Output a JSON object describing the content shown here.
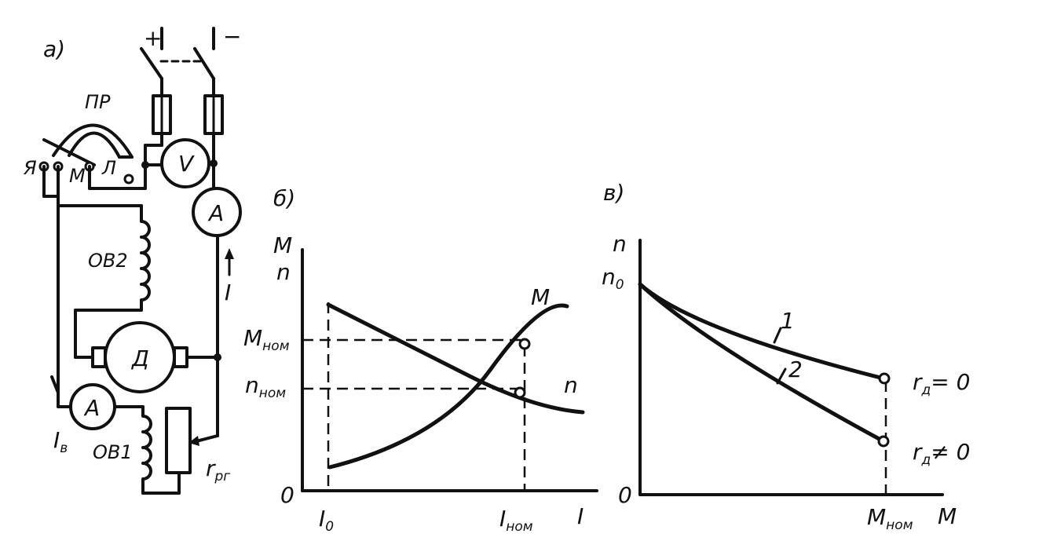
{
  "panel_a": {
    "label": "а)",
    "plus": "+",
    "minus": "−",
    "rheostat": "ПР",
    "tap_ya": "Я",
    "tap_m": "М",
    "tap_l": "Л",
    "voltmeter": "V",
    "ammeter_main": "A",
    "current": "I",
    "field_series": "ОВ2",
    "motor": "Д",
    "ammeter_field": "A",
    "field_current": "I",
    "field_current_sub": "в",
    "field_shunt": "ОВ1",
    "field_reg": "r",
    "field_reg_sub": "рг"
  },
  "panel_b": {
    "label": "б)",
    "ylabel_top": "M",
    "ylabel_bottom": "n",
    "origin": "0",
    "m_nom": "M",
    "m_nom_sub": "ном",
    "n_nom": "n",
    "n_nom_sub": "ном",
    "curve_m": "M",
    "curve_n": "n",
    "x_i0": "I",
    "x_i0_sub": "0",
    "x_inom": "I",
    "x_inom_sub": "ном",
    "xlabel": "I"
  },
  "panel_c": {
    "label": "в)",
    "ylabel": "n",
    "n0": "n",
    "n0_sub": "0",
    "origin": "0",
    "curve1": "1",
    "curve2": "2",
    "r1": "r",
    "r1_sub": "д",
    "r1_cond": "= 0",
    "r2": "r",
    "r2_sub": "д",
    "r2_cond": "≠ 0",
    "x_mnom": "M",
    "x_mnom_sub": "ном",
    "xlabel": "M"
  }
}
